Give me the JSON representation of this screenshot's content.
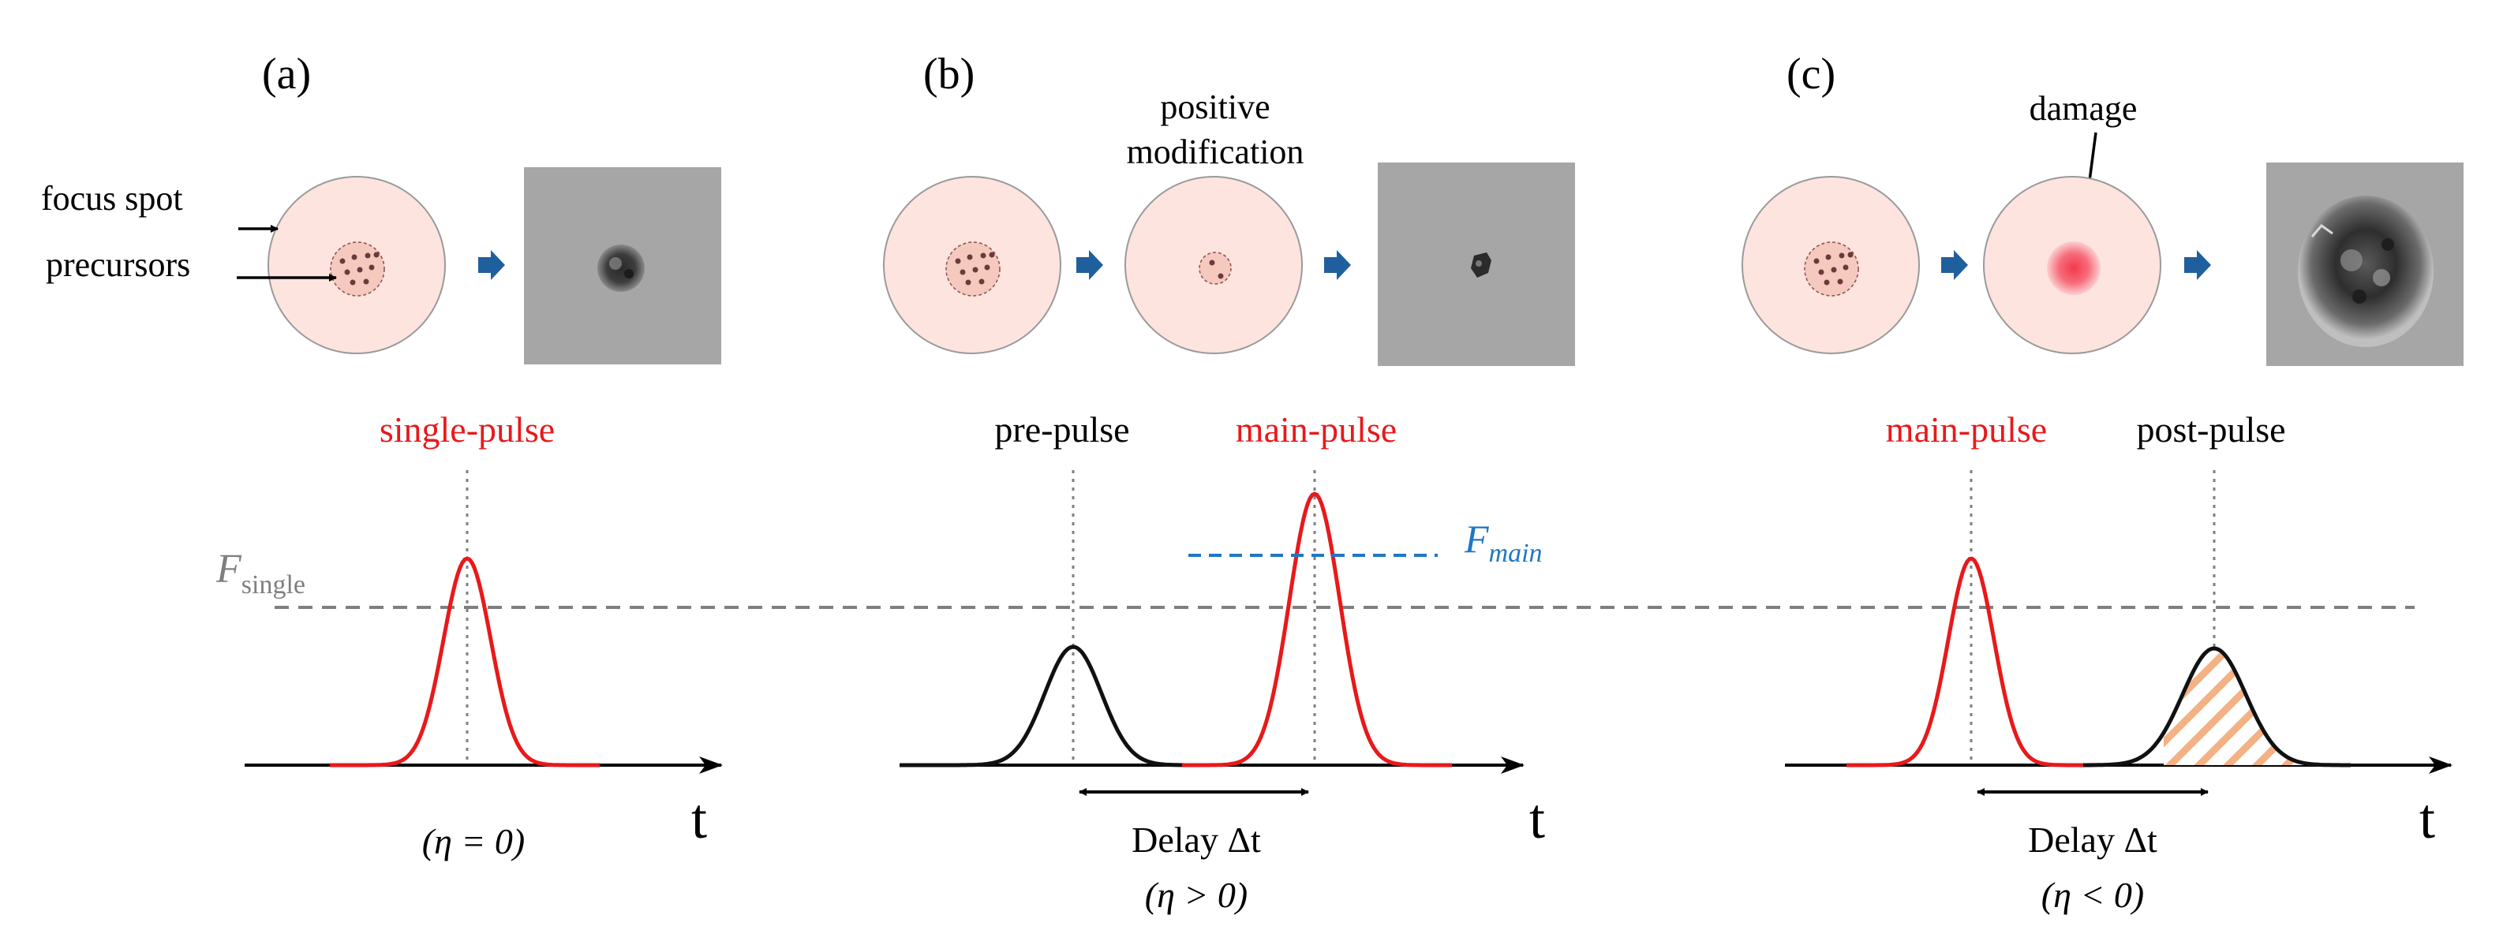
{
  "panels": {
    "a": {
      "label": "(a)",
      "focus_spot_label": "focus spot",
      "precursors_label": "precursors",
      "pulse_label": "single-pulse",
      "eta_text": "(η = 0)",
      "t_label": "t"
    },
    "b": {
      "label": "(b)",
      "annot_line1": "positive",
      "annot_line2": "modification",
      "pre_label": "pre-pulse",
      "main_label": "main-pulse",
      "f_main_letter": "F",
      "f_main_sub": "main",
      "delay_label": "Delay Δt",
      "eta_text": "(η > 0)",
      "t_label": "t"
    },
    "c": {
      "label": "(c)",
      "damage_label": "damage",
      "main_label": "main-pulse",
      "post_label": "post-pulse",
      "delay_label": "Delay Δt",
      "eta_text": "(η < 0)",
      "t_label": "t"
    }
  },
  "threshold": {
    "letter": "F",
    "subscript": "single"
  },
  "colors": {
    "main_pulse": "#e8191b",
    "aux_pulse": "#111111",
    "threshold_line": "#7f7f7f",
    "f_main": "#1f77c4",
    "arrow_blue": "#1f5f9e",
    "spot_fill": "#fde4df",
    "hatch": "#f4b183",
    "micrograph_bg": "#a6a6a6"
  },
  "icons": {
    "process_arrow": "right-chevron-arrow",
    "micrograph": "microscope-image"
  }
}
